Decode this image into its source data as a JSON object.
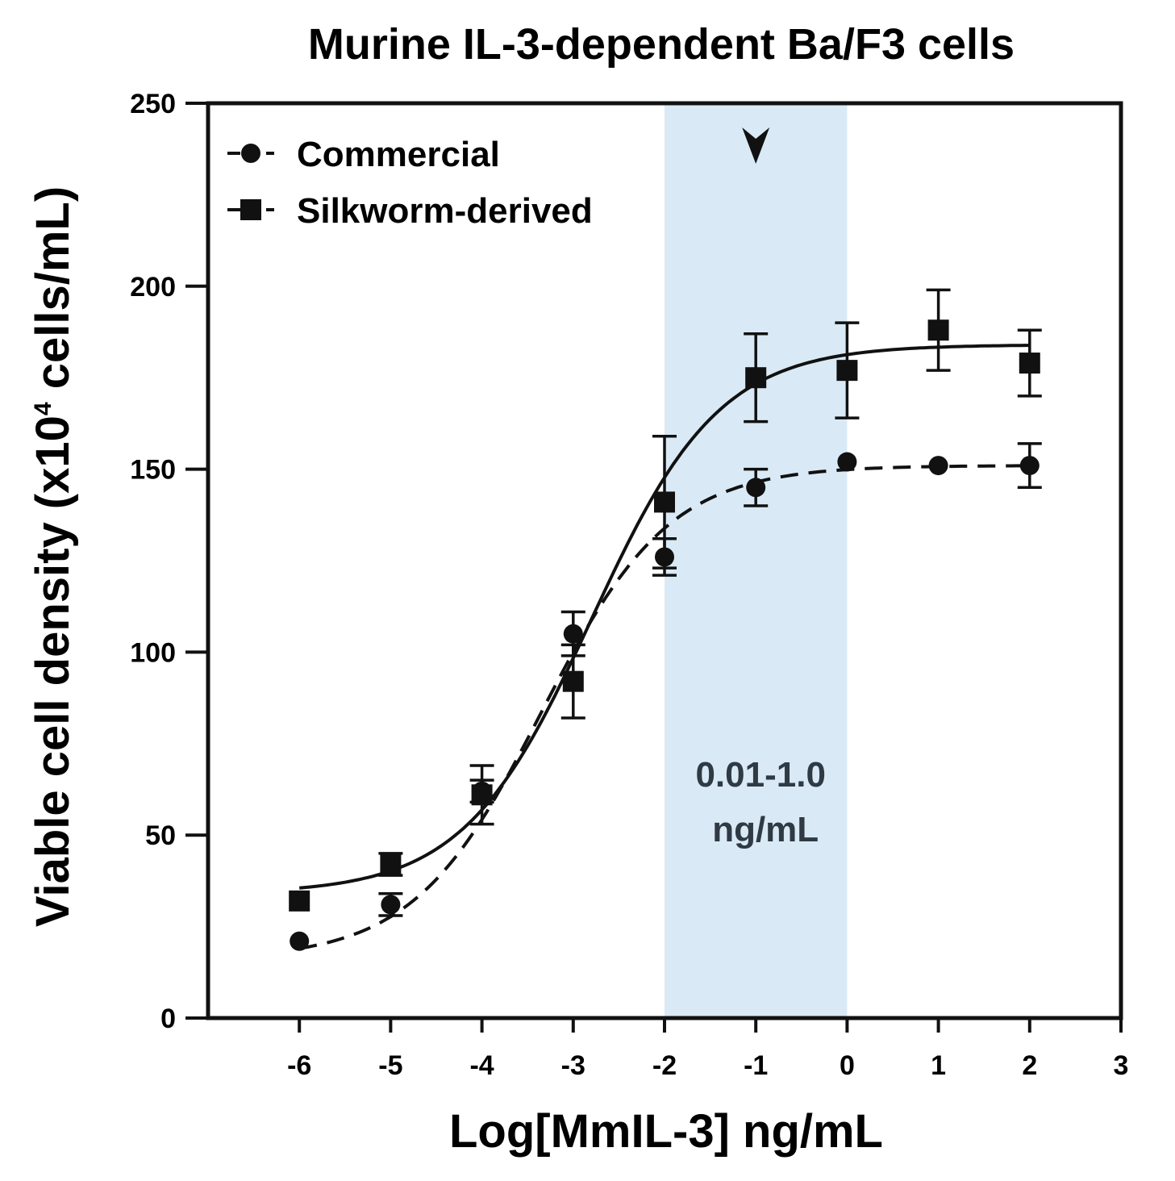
{
  "chart_data": {
    "type": "scatter",
    "title": "Murine IL-3-dependent Ba/F3 cells",
    "xlabel": "Log[MmIL-3] ng/mL",
    "ylabel_main": "Viable cell density (x10",
    "ylabel_sup": "4",
    "ylabel_end": " cells/mL)",
    "xlim": [
      -7,
      3
    ],
    "ylim": [
      0,
      250
    ],
    "xticks": [
      -6,
      -5,
      -4,
      -3,
      -2,
      -1,
      0,
      1,
      2,
      3
    ],
    "yticks": [
      0,
      50,
      100,
      150,
      200,
      250
    ],
    "grid": false,
    "legend_position": "top-left",
    "highlight_band": {
      "x_range": [
        -2,
        0
      ],
      "color": "#d9eaf6",
      "label_lines": [
        "0.01-1.0",
        "ng/mL"
      ],
      "marker": "arrowhead",
      "marker_x": -1
    },
    "series": [
      {
        "name": "Commercial",
        "marker": "circle",
        "line": "dashed",
        "color": "#111111",
        "x": [
          -6,
          -5,
          -4,
          -3,
          -2,
          -1,
          0,
          1,
          2
        ],
        "y": [
          21,
          31,
          62,
          105,
          126,
          145,
          152,
          151,
          151
        ],
        "err": [
          0,
          3,
          3,
          6,
          5,
          5,
          0,
          0,
          6
        ],
        "fit": {
          "bottom": 16,
          "top": 151,
          "logEC50": -3.35,
          "hill": 0.62
        }
      },
      {
        "name": "Silkworm-derived",
        "marker": "square",
        "line": "solid",
        "color": "#111111",
        "x": [
          -6,
          -5,
          -4,
          -3,
          -2,
          -1,
          0,
          1,
          2
        ],
        "y": [
          32,
          42,
          61,
          92,
          141,
          175,
          177,
          188,
          179
        ],
        "err": [
          0,
          3,
          8,
          10,
          18,
          12,
          13,
          11,
          9
        ],
        "fit": {
          "bottom": 34,
          "top": 184,
          "logEC50": -2.8,
          "hill": 0.62
        }
      }
    ]
  }
}
